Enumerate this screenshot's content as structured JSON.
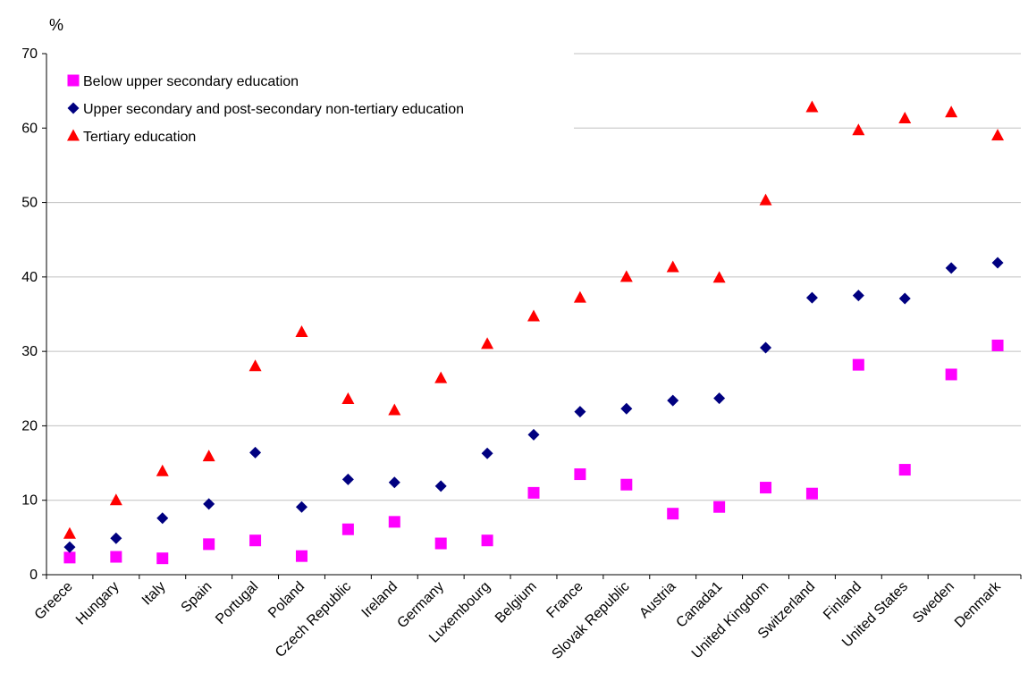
{
  "chart_data": {
    "type": "scatter",
    "title": "",
    "xlabel": "",
    "ylabel": "",
    "y_unit_label": "%",
    "ylim": [
      0,
      70
    ],
    "yticks": [
      0,
      10,
      20,
      30,
      40,
      50,
      60,
      70
    ],
    "grid": "horizontal",
    "legend_position": "top-left",
    "categories": [
      "Greece",
      "Hungary",
      "Italy",
      "Spain",
      "Portugal",
      "Poland",
      "Czech Republic",
      "Ireland",
      "Germany",
      "Luxembourg",
      "Belgium",
      "France",
      "Slovak Republic",
      "Austria",
      "Canada1",
      "United Kingdom",
      "Switzerland",
      "Finland",
      "United States",
      "Sweden",
      "Denmark"
    ],
    "series": [
      {
        "name": "Below upper secondary education",
        "marker": "square",
        "color": "#ff00ff",
        "values": [
          2.3,
          2.4,
          2.2,
          4.1,
          4.6,
          2.5,
          6.1,
          7.1,
          4.2,
          4.6,
          11.0,
          13.5,
          12.1,
          8.2,
          9.1,
          11.7,
          10.9,
          28.2,
          14.1,
          26.9,
          30.8
        ]
      },
      {
        "name": "Upper secondary and post-secondary non-tertiary education",
        "marker": "diamond",
        "color": "#000080",
        "values": [
          3.7,
          4.9,
          7.6,
          9.5,
          16.4,
          9.1,
          12.8,
          12.4,
          11.9,
          16.3,
          18.8,
          21.9,
          22.3,
          23.4,
          23.7,
          30.5,
          37.2,
          37.5,
          37.1,
          41.2,
          41.9
        ]
      },
      {
        "name": "Tertiary education",
        "marker": "triangle",
        "color": "#ff0000",
        "values": [
          5.5,
          10.0,
          13.9,
          15.9,
          28.0,
          32.6,
          23.6,
          22.1,
          26.4,
          31.0,
          34.7,
          37.2,
          40.0,
          41.3,
          39.9,
          50.3,
          62.8,
          59.7,
          61.3,
          62.1,
          59.0
        ]
      }
    ]
  }
}
